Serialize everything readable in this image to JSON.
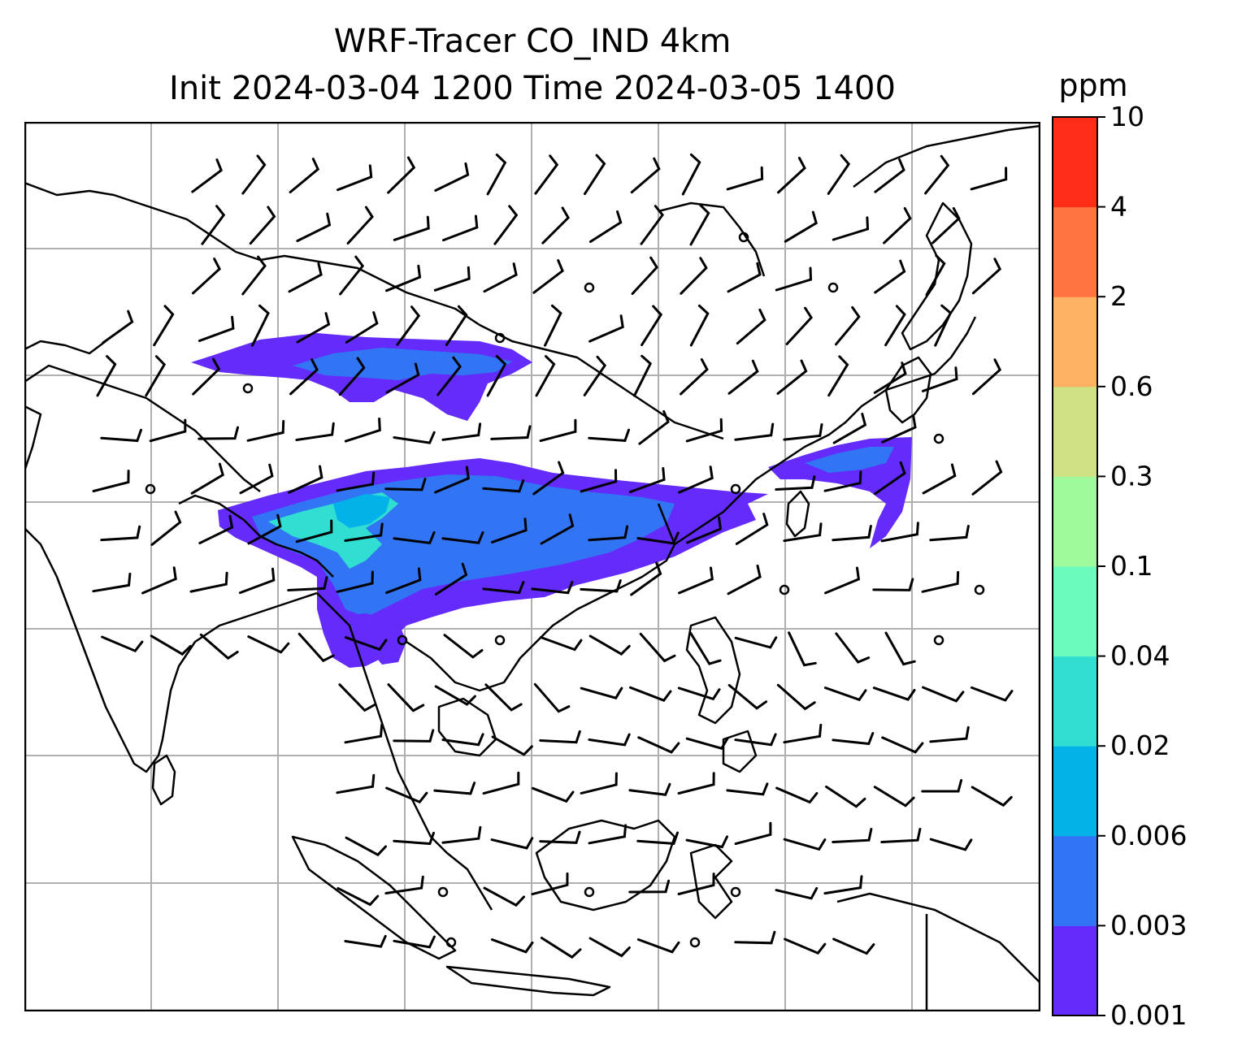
{
  "title": {
    "line1": "WRF-Tracer CO_IND 4km",
    "line2": "Init 2024-03-04 1200 Time 2024-03-05 1400"
  },
  "colorbar": {
    "unit": "ppm",
    "levels": [
      "0.001",
      "0.003",
      "0.006",
      "0.02",
      "0.04",
      "0.1",
      "0.3",
      "0.6",
      "2",
      "4",
      "10"
    ],
    "colors": [
      "#642bfb",
      "#3275f4",
      "#04b2ea",
      "#31dfd2",
      "#6bfcbd",
      "#9efa9d",
      "#cee185",
      "#fdb264",
      "#ff7440",
      "#ff2c18"
    ]
  },
  "map": {
    "gridlines": true,
    "overlays": [
      "coastlines",
      "country-borders",
      "wind-barbs",
      "calm-wind-circles",
      "tracer-plume-fill"
    ],
    "plume_colors": {
      "low": "#642bfb",
      "mid": "#3275f4",
      "high": "#31dfd2"
    }
  }
}
